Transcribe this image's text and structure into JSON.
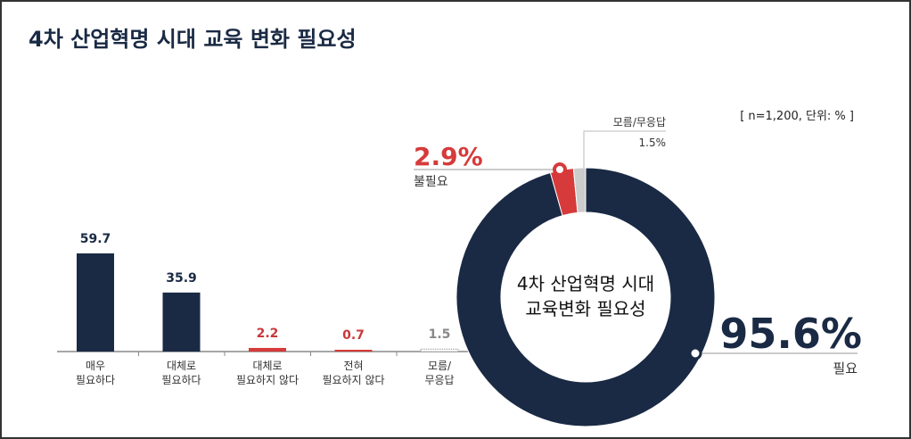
{
  "title": "4차 산업혁명 시대 교육 변화 필요성",
  "note": "[ n=1,200, 단위: % ]",
  "chart_data": [
    {
      "type": "bar",
      "categories": [
        [
          "매우",
          "필요하다"
        ],
        [
          "대체로",
          "필요하다"
        ],
        [
          "대체로",
          "필요하지 않다"
        ],
        [
          "전혀",
          "필요하지 않다"
        ],
        [
          "모름/",
          "무응답"
        ]
      ],
      "values": [
        59.7,
        35.9,
        2.2,
        0.7,
        1.5
      ],
      "value_labels": [
        "59.7",
        "35.9",
        "2.2",
        "0.7",
        "1.5"
      ],
      "colors": [
        "#1a2a44",
        "#1a2a44",
        "#d63a3a",
        "#d63a3a",
        "#888888"
      ],
      "ylim": [
        0,
        60
      ]
    },
    {
      "type": "pie",
      "center_label": [
        "4차 산업혁명 시대",
        "교육변화 필요성"
      ],
      "slices": [
        {
          "name": "필요",
          "value": 95.6,
          "label": "95.6%",
          "color": "#1a2a44"
        },
        {
          "name": "불필요",
          "value": 2.9,
          "label": "2.9%",
          "color": "#d63a3a"
        },
        {
          "name": "모름/무응답",
          "value": 1.5,
          "label": "1.5%",
          "color": "#cccccc"
        }
      ]
    }
  ]
}
